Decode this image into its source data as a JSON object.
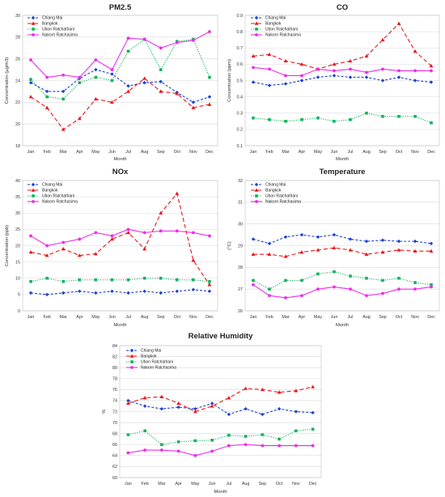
{
  "series_style": [
    {
      "color": "#1a3fd6",
      "dash": "3,2",
      "marker": "diamond"
    },
    {
      "color": "#e8161b",
      "dash": "5,3",
      "marker": "triangle"
    },
    {
      "color": "#14b35a",
      "dash": "1.2,1.6",
      "marker": "square"
    },
    {
      "color": "#ef2bea",
      "dash": "",
      "marker": "circle"
    }
  ],
  "chart_data": [
    {
      "type": "line",
      "title": "PM2.5",
      "xlabel": "Month",
      "ylabel": "Concentration (μg/m3)",
      "ylim": [
        18,
        30
      ],
      "yticks": [
        18,
        20,
        22,
        24,
        26,
        28,
        30
      ],
      "ytick_labels": [
        "18",
        "20",
        "22",
        "24",
        "26",
        "28",
        "30"
      ],
      "categories": [
        "Jan",
        "Feb",
        "Mar",
        "Apr",
        "May",
        "Jun",
        "Jul",
        "Aug",
        "Sep",
        "Oct",
        "Nov",
        "Dec"
      ],
      "legend_position": "top-left",
      "series": [
        {
          "name": "Chiang Mai",
          "values": [
            23.8,
            23.0,
            23.0,
            24.2,
            25.0,
            24.6,
            23.5,
            23.8,
            23.9,
            22.9,
            22.0,
            22.5
          ]
        },
        {
          "name": "Bangkok",
          "values": [
            22.5,
            21.5,
            19.5,
            20.5,
            22.3,
            22.0,
            23.0,
            24.2,
            23.0,
            22.8,
            21.5,
            21.8
          ]
        },
        {
          "name": "Ubon Ratchathani",
          "values": [
            24.1,
            22.5,
            22.3,
            23.8,
            24.3,
            24.0,
            26.7,
            27.8,
            25.0,
            27.6,
            27.8,
            24.3
          ]
        },
        {
          "name": "Nakorn Ratchasima",
          "values": [
            25.9,
            24.3,
            24.5,
            24.3,
            25.9,
            25.0,
            27.9,
            27.8,
            27.0,
            27.5,
            27.7,
            28.5
          ]
        }
      ]
    },
    {
      "type": "line",
      "title": "CO",
      "xlabel": "Month",
      "ylabel": "Concentration (ppm)",
      "ylim": [
        0.1,
        0.9
      ],
      "yticks": [
        0.1,
        0.2,
        0.3,
        0.4,
        0.5,
        0.6,
        0.7,
        0.8,
        0.9
      ],
      "ytick_labels": [
        "0.1",
        "0.2",
        "0.3",
        "0.4",
        "0.5",
        "0.6",
        "0.7",
        "0.8",
        "0.9"
      ],
      "categories": [
        "Jan",
        "Feb",
        "Mar",
        "Apr",
        "May",
        "Jun",
        "Jul",
        "Aug",
        "Sep",
        "Oct",
        "Nov",
        "Dec"
      ],
      "legend_position": "top-left",
      "series": [
        {
          "name": "Chiang Mai",
          "values": [
            0.49,
            0.47,
            0.48,
            0.5,
            0.52,
            0.53,
            0.52,
            0.52,
            0.5,
            0.52,
            0.5,
            0.49
          ]
        },
        {
          "name": "Bangkok",
          "values": [
            0.65,
            0.66,
            0.62,
            0.6,
            0.57,
            0.6,
            0.62,
            0.65,
            0.75,
            0.85,
            0.68,
            0.59
          ]
        },
        {
          "name": "Ubon Ratchathani",
          "values": [
            0.27,
            0.26,
            0.25,
            0.26,
            0.27,
            0.25,
            0.26,
            0.3,
            0.28,
            0.28,
            0.28,
            0.24
          ]
        },
        {
          "name": "Nakorn Ratchasima",
          "values": [
            0.58,
            0.57,
            0.53,
            0.53,
            0.57,
            0.56,
            0.57,
            0.55,
            0.57,
            0.56,
            0.56,
            0.56
          ]
        }
      ]
    },
    {
      "type": "line",
      "title": "NOx",
      "xlabel": "Month",
      "ylabel": "Concentration (ppb)",
      "ylim": [
        0,
        40
      ],
      "yticks": [
        0,
        5,
        10,
        15,
        20,
        25,
        30,
        35,
        40
      ],
      "ytick_labels": [
        "0",
        "5",
        "10",
        "15",
        "20",
        "25",
        "30",
        "35",
        "40"
      ],
      "categories": [
        "Jan",
        "Feb",
        "Mar",
        "Apr",
        "May",
        "Jun",
        "Jul",
        "Aug",
        "Sep",
        "Oct",
        "Nov",
        "Dec"
      ],
      "legend_position": "top-left",
      "series": [
        {
          "name": "Chiang Mai",
          "values": [
            5.5,
            5.0,
            5.5,
            6.0,
            5.5,
            6.0,
            5.5,
            6.0,
            5.5,
            6.0,
            6.5,
            6.0
          ]
        },
        {
          "name": "Bangkok",
          "values": [
            18.0,
            17.0,
            19.0,
            17.0,
            17.5,
            22.0,
            24.0,
            19.0,
            30.0,
            36.0,
            15.5,
            8.0
          ]
        },
        {
          "name": "Ubon Ratchathani",
          "values": [
            9.0,
            10.0,
            9.0,
            9.5,
            9.5,
            9.5,
            9.5,
            10.0,
            10.0,
            9.5,
            9.5,
            9.0
          ]
        },
        {
          "name": "Nakorn Ratchasima",
          "values": [
            23.0,
            20.0,
            21.0,
            22.0,
            24.0,
            23.0,
            25.0,
            24.0,
            24.5,
            24.5,
            24.0,
            23.0
          ]
        }
      ]
    },
    {
      "type": "line",
      "title": "Temperature",
      "xlabel": "Month",
      "ylabel": "(°C)",
      "ylim": [
        26,
        32
      ],
      "yticks": [
        26,
        27,
        28,
        29,
        30,
        31,
        32
      ],
      "ytick_labels": [
        "26",
        "27",
        "28",
        "29",
        "30",
        "31",
        "32"
      ],
      "categories": [
        "Jan",
        "Feb",
        "Mar",
        "Apr",
        "May",
        "Jun",
        "Jul",
        "Aug",
        "Sep",
        "Oct",
        "Nov",
        "Dec"
      ],
      "legend_position": "top-left",
      "series": [
        {
          "name": "Chiang Mai",
          "values": [
            29.3,
            29.1,
            29.4,
            29.5,
            29.4,
            29.5,
            29.3,
            29.2,
            29.25,
            29.2,
            29.2,
            29.1
          ]
        },
        {
          "name": "Bangkok",
          "values": [
            28.6,
            28.6,
            28.5,
            28.7,
            28.8,
            28.9,
            28.8,
            28.6,
            28.7,
            28.8,
            28.75,
            28.75
          ]
        },
        {
          "name": "Ubon Ratchathani",
          "values": [
            27.4,
            27.0,
            27.4,
            27.4,
            27.7,
            27.8,
            27.6,
            27.5,
            27.4,
            27.5,
            27.3,
            27.2
          ]
        },
        {
          "name": "Nakorn Ratchasima",
          "values": [
            27.2,
            26.7,
            26.6,
            26.7,
            27.0,
            27.1,
            27.0,
            26.7,
            26.8,
            27.0,
            27.0,
            27.1
          ]
        }
      ]
    },
    {
      "type": "line",
      "title": "Relative Humidity",
      "xlabel": "Month",
      "ylabel": "%",
      "ylim": [
        60,
        84
      ],
      "yticks": [
        60,
        62,
        64,
        66,
        68,
        70,
        72,
        74,
        76,
        78,
        80,
        82,
        84
      ],
      "ytick_labels": [
        "60",
        "62",
        "64",
        "66",
        "68",
        "70",
        "72",
        "74",
        "76",
        "78",
        "80",
        "82",
        "84"
      ],
      "categories": [
        "Jan",
        "Feb",
        "Mar",
        "Apr",
        "May",
        "Jun",
        "Jul",
        "Aug",
        "Sep",
        "Oct",
        "Nov",
        "Dec"
      ],
      "legend_position": "top-left",
      "series": [
        {
          "name": "Chiang Mai",
          "values": [
            74.0,
            73.0,
            72.5,
            72.8,
            72.5,
            73.5,
            71.5,
            72.5,
            71.5,
            72.5,
            72.0,
            71.8
          ]
        },
        {
          "name": "Bangkok",
          "values": [
            73.5,
            74.5,
            74.7,
            73.5,
            72.0,
            73.0,
            74.5,
            76.2,
            76.0,
            75.5,
            75.8,
            76.5
          ]
        },
        {
          "name": "Ubon Ratchathani",
          "values": [
            67.8,
            68.5,
            66.0,
            66.5,
            66.7,
            66.8,
            67.7,
            67.5,
            67.8,
            67.0,
            68.5,
            68.8
          ]
        },
        {
          "name": "Nakorn Ratchasima",
          "values": [
            64.5,
            65.0,
            65.0,
            64.8,
            64.0,
            64.8,
            65.8,
            66.0,
            65.8,
            65.8,
            65.8,
            65.8
          ]
        }
      ]
    }
  ]
}
